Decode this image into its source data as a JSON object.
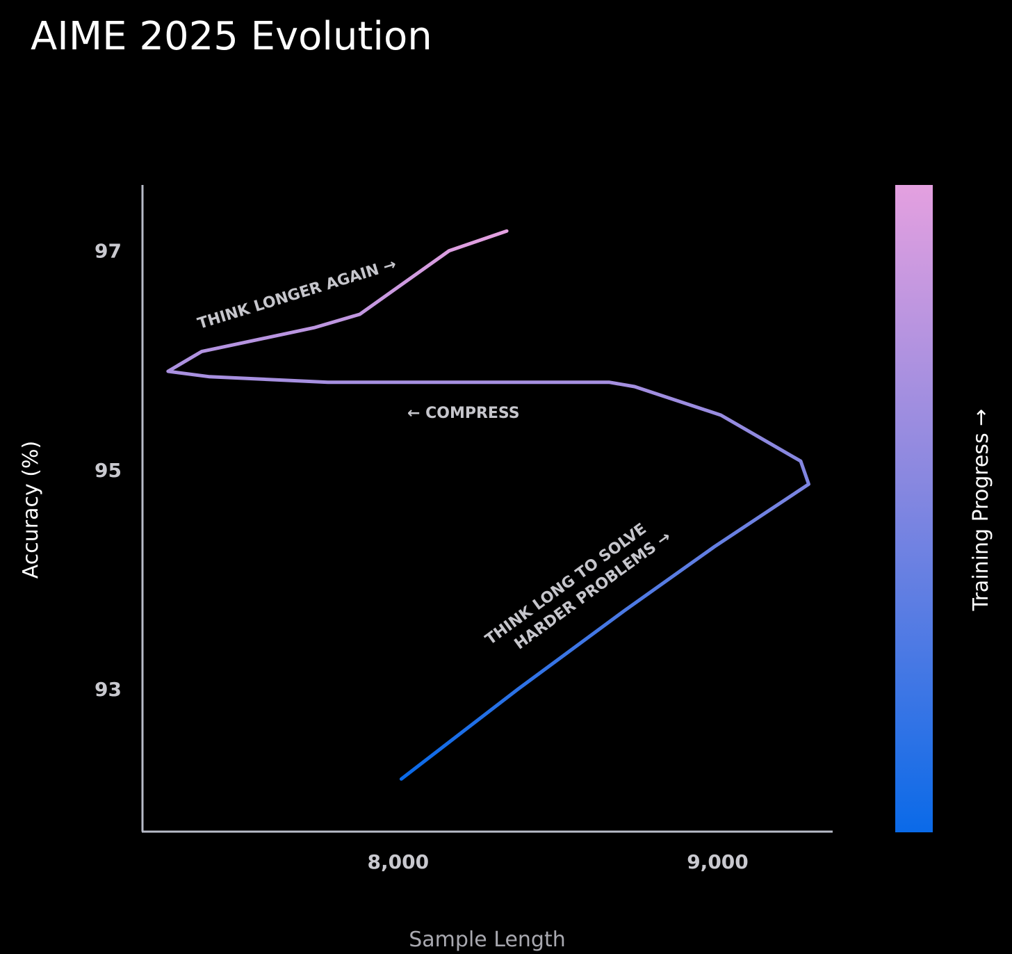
{
  "chart_data": {
    "type": "line",
    "title": "AIME 2025 Evolution",
    "xlabel": "Sample Length",
    "ylabel": "Accuracy (%)",
    "colorbar_label": "Training Progress →",
    "x_ticks": [
      {
        "value": 8000,
        "label": "8,000"
      },
      {
        "value": 9000,
        "label": "9,000"
      }
    ],
    "y_ticks": [
      {
        "value": 93,
        "label": "93"
      },
      {
        "value": 95,
        "label": "95"
      },
      {
        "value": 97,
        "label": "97"
      }
    ],
    "xlim": [
      7200,
      9360
    ],
    "ylim": [
      91.7,
      97.6
    ],
    "series": [
      {
        "points": [
          [
            8010,
            92.18
          ],
          [
            8375,
            93.0
          ],
          [
            8710,
            93.72
          ],
          [
            8990,
            94.3
          ],
          [
            9285,
            94.87
          ],
          [
            9260,
            95.08
          ],
          [
            9010,
            95.5
          ],
          [
            8740,
            95.76
          ],
          [
            8660,
            95.8
          ],
          [
            7780,
            95.8
          ],
          [
            7410,
            95.85
          ],
          [
            7280,
            95.9
          ],
          [
            7385,
            96.08
          ],
          [
            7740,
            96.3
          ],
          [
            7880,
            96.42
          ],
          [
            8160,
            97.0
          ],
          [
            8340,
            97.18
          ]
        ]
      }
    ],
    "gradient": {
      "start": "#0a6ae8",
      "mid": "#8a88e0",
      "end": "#e4a0e0"
    },
    "annotations": [
      {
        "lines": [
          "THINK LONGER AGAIN →"
        ]
      },
      {
        "lines": [
          "← COMPRESS"
        ]
      },
      {
        "lines": [
          "THINK LONG TO SOLVE",
          "HARDER PROBLEMS →"
        ]
      }
    ],
    "colors": {
      "background": "#000000",
      "axis": "#b8bcc8"
    }
  }
}
